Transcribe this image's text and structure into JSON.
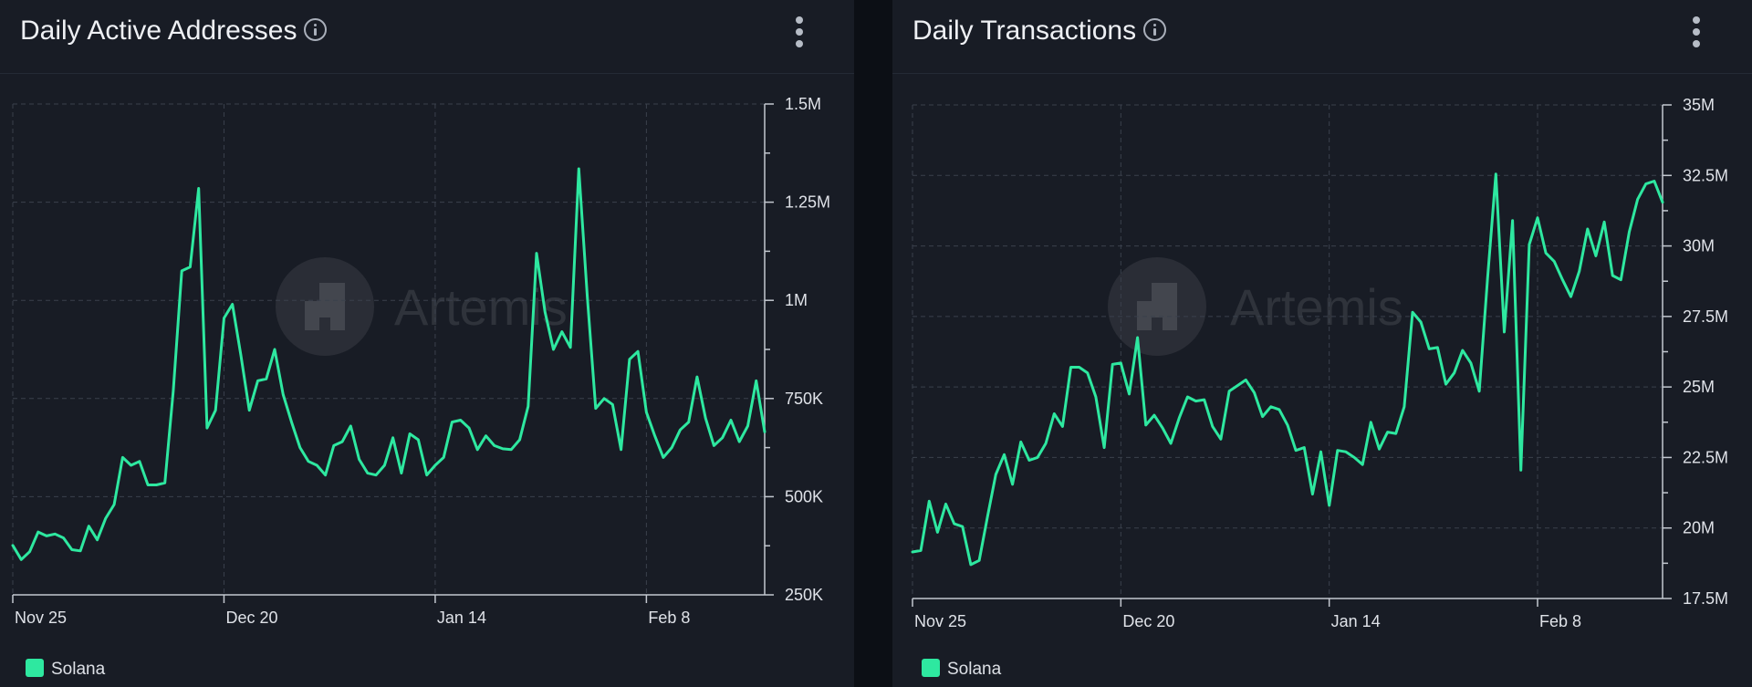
{
  "panels": [
    {
      "title": "Daily Active Addresses",
      "legend_label": "Solana",
      "watermark_text": "Artemis"
    },
    {
      "title": "Daily Transactions",
      "legend_label": "Solana",
      "watermark_text": "Artemis"
    }
  ],
  "colors": {
    "line": "#2ee8a0",
    "background": "#181c25",
    "grid": "#3a404c",
    "axis": "#c3c8d0"
  },
  "chart_data": [
    {
      "type": "line",
      "title": "Daily Active Addresses",
      "xlabel": "",
      "ylabel": "",
      "x_start": "Nov 25",
      "x_ticks": [
        {
          "label": "Nov 25",
          "index": 0
        },
        {
          "label": "Dec 20",
          "index": 25
        },
        {
          "label": "Jan 14",
          "index": 50
        },
        {
          "label": "Feb 8",
          "index": 75
        }
      ],
      "ylim": [
        250000,
        1500000
      ],
      "y_ticks": [
        {
          "value": 250000,
          "label": "250K"
        },
        {
          "value": 500000,
          "label": "500K"
        },
        {
          "value": 750000,
          "label": "750K"
        },
        {
          "value": 1000000,
          "label": "1M"
        },
        {
          "value": 1250000,
          "label": "1.25M"
        },
        {
          "value": 1500000,
          "label": "1.5M"
        }
      ],
      "grid": true,
      "legend": "bottom-left",
      "series": [
        {
          "name": "Solana",
          "values": [
            376000,
            340000,
            360000,
            410000,
            400000,
            405000,
            395000,
            365000,
            362000,
            425000,
            390000,
            445000,
            480000,
            600000,
            580000,
            590000,
            530000,
            530000,
            535000,
            770000,
            1075000,
            1085000,
            1285000,
            675000,
            720000,
            955000,
            990000,
            860000,
            720000,
            795000,
            800000,
            875000,
            760000,
            690000,
            625000,
            590000,
            580000,
            555000,
            630000,
            640000,
            680000,
            595000,
            560000,
            555000,
            580000,
            650000,
            560000,
            660000,
            645000,
            555000,
            580000,
            600000,
            690000,
            695000,
            675000,
            620000,
            655000,
            630000,
            622000,
            620000,
            645000,
            730000,
            1120000,
            970000,
            875000,
            920000,
            880000,
            1335000,
            1010000,
            725000,
            750000,
            735000,
            620000,
            850000,
            870000,
            715000,
            655000,
            600000,
            625000,
            670000,
            690000,
            805000,
            700000,
            630000,
            650000,
            695000,
            640000,
            680000,
            795000,
            665000
          ]
        }
      ]
    },
    {
      "type": "line",
      "title": "Daily Transactions",
      "xlabel": "",
      "ylabel": "",
      "x_start": "Nov 25",
      "x_ticks": [
        {
          "label": "Nov 25",
          "index": 0
        },
        {
          "label": "Dec 20",
          "index": 25
        },
        {
          "label": "Jan 14",
          "index": 50
        },
        {
          "label": "Feb 8",
          "index": 75
        }
      ],
      "ylim": [
        17500000,
        35000000
      ],
      "y_ticks": [
        {
          "value": 17500000,
          "label": "17.5M"
        },
        {
          "value": 20000000,
          "label": "20M"
        },
        {
          "value": 22500000,
          "label": "22.5M"
        },
        {
          "value": 25000000,
          "label": "25M"
        },
        {
          "value": 27500000,
          "label": "27.5M"
        },
        {
          "value": 30000000,
          "label": "30M"
        },
        {
          "value": 32500000,
          "label": "32.5M"
        },
        {
          "value": 35000000,
          "label": "35M"
        }
      ],
      "grid": true,
      "legend": "bottom-left",
      "series": [
        {
          "name": "Solana",
          "values": [
            19150000,
            19200000,
            20950000,
            19850000,
            20850000,
            20150000,
            20050000,
            18700000,
            18850000,
            20400000,
            21900000,
            22600000,
            21550000,
            23050000,
            22400000,
            22500000,
            23000000,
            24050000,
            23600000,
            25700000,
            25700000,
            25500000,
            24650000,
            22850000,
            25800000,
            25850000,
            24750000,
            26750000,
            23650000,
            24000000,
            23550000,
            23000000,
            23900000,
            24650000,
            24500000,
            24550000,
            23600000,
            23150000,
            24850000,
            25050000,
            25250000,
            24800000,
            23950000,
            24300000,
            24200000,
            23650000,
            22750000,
            22850000,
            21200000,
            22700000,
            20800000,
            22750000,
            22700000,
            22500000,
            22250000,
            23750000,
            22800000,
            23400000,
            23350000,
            24300000,
            27650000,
            27300000,
            26350000,
            26400000,
            25100000,
            25500000,
            26300000,
            25850000,
            24850000,
            28850000,
            32550000,
            26950000,
            30900000,
            22050000,
            30050000,
            31000000,
            29750000,
            29450000,
            28800000,
            28200000,
            29100000,
            30600000,
            29650000,
            30850000,
            28950000,
            28800000,
            30500000,
            31650000,
            32200000,
            32300000,
            31550000
          ]
        }
      ]
    }
  ]
}
